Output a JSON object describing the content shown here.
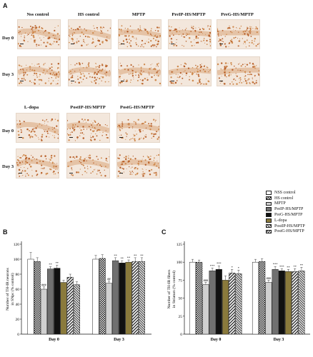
{
  "panel_a": {
    "letter": "A",
    "groups_top": [
      "Nss control",
      "HS control",
      "MPTP",
      "PreIP-HS/MPTP",
      "PreG-HS/MPTP"
    ],
    "groups_bottom": [
      "L-dopa",
      "PostIP-HS/MPTP",
      "PostG-HS/MPTP"
    ],
    "rows": [
      "Day 0",
      "Day 3"
    ]
  },
  "legend": {
    "items": [
      {
        "label": "NSS control",
        "fill": "white"
      },
      {
        "label": "HS control",
        "fill": "checker"
      },
      {
        "label": "MPTP",
        "fill": "#d0d0d0"
      },
      {
        "label": "PreIP-HS/MPTP",
        "fill": "#707070"
      },
      {
        "label": "PreG-HS/MPTP",
        "fill": "#111111"
      },
      {
        "label": "L-dopa",
        "fill": "#8a7a3c"
      },
      {
        "label": "PostIP-HS/MPTP",
        "fill": "diag"
      },
      {
        "label": "PostG-HS/MPTP",
        "fill": "diag2"
      }
    ]
  },
  "chart_data": [
    {
      "panel": "B",
      "type": "bar",
      "ylabel": "Number of TH-IR neurons in SNpc (% control)",
      "ylim": [
        0,
        120
      ],
      "yticks": [
        0,
        20,
        40,
        60,
        80,
        100,
        120
      ],
      "categories": [
        "Day 0",
        "Day 3"
      ],
      "series": [
        {
          "name": "NSS control",
          "values": [
            100,
            100
          ],
          "err": [
            9,
            5
          ]
        },
        {
          "name": "HS control",
          "values": [
            97,
            101
          ],
          "err": [
            5,
            5
          ]
        },
        {
          "name": "MPTP",
          "values": [
            60,
            68
          ],
          "err": [
            3,
            3
          ]
        },
        {
          "name": "PreIP-HS/MPTP",
          "values": [
            87,
            98
          ],
          "err": [
            3,
            4
          ]
        },
        {
          "name": "PreG-HS/MPTP",
          "values": [
            88,
            95
          ],
          "err": [
            4,
            3
          ]
        },
        {
          "name": "L-dopa",
          "values": [
            69,
            96
          ],
          "err": [
            3,
            3
          ]
        },
        {
          "name": "PostIP-HS/MPTP",
          "values": [
            76,
            97
          ],
          "err": [
            4,
            5
          ]
        },
        {
          "name": "PostG-HS/MPTP",
          "values": [
            66,
            97
          ],
          "err": [
            4,
            5
          ]
        }
      ],
      "annotations": [
        {
          "series": 2,
          "cat": 0,
          "text": "###"
        },
        {
          "series": 3,
          "cat": 0,
          "text": "**"
        },
        {
          "series": 4,
          "cat": 0,
          "text": "**"
        },
        {
          "series": 2,
          "cat": 1,
          "text": "##"
        },
        {
          "series": 3,
          "cat": 1,
          "text": "**"
        },
        {
          "series": 4,
          "cat": 1,
          "text": "**"
        },
        {
          "series": 5,
          "cat": 1,
          "text": "**"
        },
        {
          "series": 6,
          "cat": 1,
          "text": "**"
        },
        {
          "series": 7,
          "cat": 1,
          "text": "**"
        }
      ]
    },
    {
      "panel": "C",
      "type": "bar",
      "ylabel": "Number of TH-IR fibers in Striatum (% control)",
      "ylim": [
        0,
        120
      ],
      "yticks": [
        0,
        25,
        50,
        75,
        100,
        125
      ],
      "categories": [
        "Day 0",
        "Day 3"
      ],
      "series": [
        {
          "name": "NSS control",
          "values": [
            100,
            100
          ],
          "err": [
            4,
            4
          ]
        },
        {
          "name": "HS control",
          "values": [
            100,
            101
          ],
          "err": [
            3,
            4
          ]
        },
        {
          "name": "MPTP",
          "values": [
            69,
            72
          ],
          "err": [
            3,
            3
          ]
        },
        {
          "name": "PreIP-HS/MPTP",
          "values": [
            88,
            90
          ],
          "err": [
            4,
            4
          ]
        },
        {
          "name": "PreG-HS/MPTP",
          "values": [
            90,
            88
          ],
          "err": [
            5,
            3
          ]
        },
        {
          "name": "L-dopa",
          "values": [
            75,
            87
          ],
          "err": [
            6,
            3
          ]
        },
        {
          "name": "PostIP-HS/MPTP",
          "values": [
            85,
            87
          ],
          "err": [
            5,
            4
          ]
        },
        {
          "name": "PostG-HS/MPTP",
          "values": [
            84,
            88
          ],
          "err": [
            5,
            5
          ]
        }
      ],
      "annotations": [
        {
          "series": 2,
          "cat": 0,
          "text": "###"
        },
        {
          "series": 3,
          "cat": 0,
          "text": "***"
        },
        {
          "series": 4,
          "cat": 0,
          "text": "***"
        },
        {
          "series": 6,
          "cat": 0,
          "text": "*"
        },
        {
          "series": 7,
          "cat": 0,
          "text": "*"
        },
        {
          "series": 2,
          "cat": 1,
          "text": "###"
        },
        {
          "series": 3,
          "cat": 1,
          "text": "***"
        },
        {
          "series": 4,
          "cat": 1,
          "text": "***"
        },
        {
          "series": 5,
          "cat": 1,
          "text": "**"
        },
        {
          "series": 6,
          "cat": 1,
          "text": "**"
        },
        {
          "series": 7,
          "cat": 1,
          "text": "**"
        }
      ]
    }
  ]
}
